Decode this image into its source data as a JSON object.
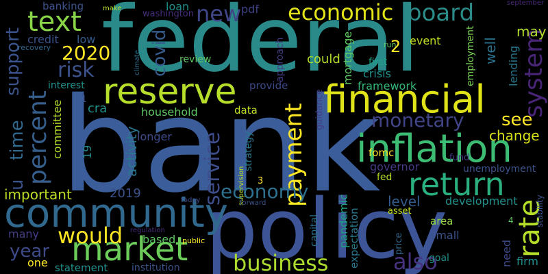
{
  "words": [
    {
      "text": "federal",
      "color": "#2a8a8a"
    },
    {
      "text": "bank",
      "color": "#3b5e9a"
    },
    {
      "text": "policy",
      "color": "#3d5596"
    },
    {
      "text": "reserve",
      "color": "#b6de2b"
    },
    {
      "text": "financial",
      "color": "#dfe318"
    },
    {
      "text": "inflation",
      "color": "#3dbc74"
    },
    {
      "text": "community",
      "color": "#31688e"
    },
    {
      "text": "market",
      "color": "#6ccd5a"
    },
    {
      "text": "return",
      "color": "#2ab07f"
    },
    {
      "text": "economic",
      "color": "#e2e418"
    },
    {
      "text": "board",
      "color": "#2c8c8a"
    },
    {
      "text": "new",
      "color": "#3f4788"
    },
    {
      "text": "text",
      "color": "#89d548"
    },
    {
      "text": "percent",
      "color": "#355e8d"
    },
    {
      "text": "monetary",
      "color": "#414487"
    },
    {
      "text": "rate",
      "color": "#b5de2b"
    },
    {
      "text": "system",
      "color": "#482475"
    },
    {
      "text": "payment",
      "color": "#fde725"
    },
    {
      "text": "economy",
      "color": "#2d718e"
    },
    {
      "text": "business",
      "color": "#addc30"
    },
    {
      "text": "would",
      "color": "#fde725"
    },
    {
      "text": "also",
      "color": "#46327e"
    },
    {
      "text": "service",
      "color": "#3e4c8a"
    },
    {
      "text": "covid",
      "color": "#365c8d"
    },
    {
      "text": "risk",
      "color": "#3b528b"
    },
    {
      "text": "2020",
      "color": "#fde725"
    },
    {
      "text": "support",
      "color": "#3a538b"
    },
    {
      "text": "time",
      "color": "#31688e"
    },
    {
      "text": "u",
      "color": "#3b528b"
    },
    {
      "text": "important",
      "color": "#bddf26"
    },
    {
      "text": "2019",
      "color": "#3b528b"
    },
    {
      "text": "year",
      "color": "#3e4a89"
    },
    {
      "text": "see",
      "color": "#fde725"
    },
    {
      "text": "change",
      "color": "#d8e219"
    },
    {
      "text": "level",
      "color": "#365c8d"
    },
    {
      "text": "2",
      "color": "#fde725"
    },
    {
      "text": "may",
      "color": "#b5de2b"
    },
    {
      "text": "well",
      "color": "#2c728e"
    },
    {
      "text": "credit",
      "color": "#3b528b"
    },
    {
      "text": "low",
      "color": "#365c8d"
    },
    {
      "text": "loan",
      "color": "#20928c"
    },
    {
      "text": "banking",
      "color": "#3b528b"
    },
    {
      "text": "make",
      "color": "#b5de2b"
    },
    {
      "text": "washington",
      "color": "#472c7a"
    },
    {
      "text": "pdf",
      "color": "#404588"
    },
    {
      "text": "mortgage",
      "color": "#5ec962"
    },
    {
      "text": "approach",
      "color": "#433e85"
    },
    {
      "text": "climate",
      "color": "#2c728e"
    },
    {
      "text": "could",
      "color": "#b5de2b"
    },
    {
      "text": "first",
      "color": "#20a386"
    },
    {
      "text": "crisis",
      "color": "#20928c"
    },
    {
      "text": "framework",
      "color": "#35b779"
    },
    {
      "text": "review",
      "color": "#5ec962"
    },
    {
      "text": "provide",
      "color": "#3e4a89"
    },
    {
      "text": "recovery",
      "color": "#31688e"
    },
    {
      "text": "interest",
      "color": "#20928c"
    },
    {
      "text": "september",
      "color": "#482878"
    },
    {
      "text": "event",
      "color": "#c2df23"
    },
    {
      "text": "run",
      "color": "#5ec962"
    },
    {
      "text": "employment",
      "color": "#7ad151"
    },
    {
      "text": "lending",
      "color": "#2a788e"
    },
    {
      "text": "fund",
      "color": "#443983"
    },
    {
      "text": "cra",
      "color": "#21918c"
    },
    {
      "text": "household",
      "color": "#5ec962"
    },
    {
      "text": "data",
      "color": "#c2df23"
    },
    {
      "text": "guidance",
      "color": "#433e85"
    },
    {
      "text": "fomc",
      "color": "#fde725"
    },
    {
      "text": "committee",
      "color": "#b5de2b"
    },
    {
      "text": "activity",
      "color": "#2a788e"
    },
    {
      "text": "longer",
      "color": "#3e4a89"
    },
    {
      "text": "strategy",
      "color": "#2a788e"
    },
    {
      "text": "supervision",
      "color": "#bddf26"
    },
    {
      "text": "governor",
      "color": "#443983"
    },
    {
      "text": "fed",
      "color": "#b5de2b"
    },
    {
      "text": "unemployment",
      "color": "#3b528b"
    },
    {
      "text": "19",
      "color": "#238a8d"
    },
    {
      "text": "1",
      "color": "#3b528b"
    },
    {
      "text": "3",
      "color": "#fde725"
    },
    {
      "text": "development",
      "color": "#21918c"
    },
    {
      "text": "pandemic",
      "color": "#1fa187"
    },
    {
      "text": "expectation",
      "color": "#2a788e"
    },
    {
      "text": "asset",
      "color": "#c2df23"
    },
    {
      "text": "price",
      "color": "#31688e"
    },
    {
      "text": "area",
      "color": "#90d743"
    },
    {
      "text": "small",
      "color": "#3b528b"
    },
    {
      "text": "need",
      "color": "#3e4a89"
    },
    {
      "text": "goal",
      "color": "#21918c"
    },
    {
      "text": "firm",
      "color": "#21918c"
    },
    {
      "text": "stability",
      "color": "#3b528b"
    },
    {
      "text": "4",
      "color": "#5ec962"
    },
    {
      "text": "capital",
      "color": "#2c728e"
    },
    {
      "text": "forward",
      "color": "#3b528b"
    },
    {
      "text": "today",
      "color": "#3e4a89"
    },
    {
      "text": "regulation",
      "color": "#472c7a"
    },
    {
      "text": "public",
      "color": "#fde725"
    },
    {
      "text": "based",
      "color": "#5ec962"
    },
    {
      "text": "many",
      "color": "#433e85"
    },
    {
      "text": "one",
      "color": "#fde725"
    },
    {
      "text": "statement",
      "color": "#21918c"
    },
    {
      "text": "institution",
      "color": "#3b528b"
    }
  ]
}
